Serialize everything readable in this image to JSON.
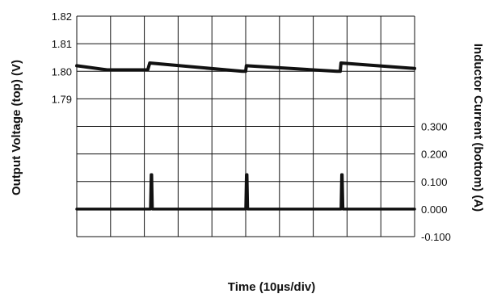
{
  "chart_data": {
    "type": "line",
    "xlabel": "Time (10µs/div)",
    "ylabel_left": "Output Voltage (top) (V)",
    "ylabel_right": "Inductor Current (bottom) (A)",
    "x_divisions": 10,
    "grid": true,
    "top_axis": {
      "label": "Output Voltage (top) (V)",
      "ticks": [
        "1.82",
        "1.81",
        "1.80",
        "1.79"
      ],
      "ylim": [
        1.79,
        1.82
      ]
    },
    "bottom_axis": {
      "label": "Inductor Current (bottom) (A)",
      "ticks": [
        "0.300",
        "0.200",
        "0.100",
        "0.000",
        "-0.100"
      ],
      "ylim": [
        -0.1,
        0.3
      ]
    },
    "series": [
      {
        "axis": "top",
        "color": "#111111",
        "x": [
          0,
          0.9,
          2.1,
          2.16,
          4.9,
          5.0,
          5.02,
          7.7,
          7.8,
          7.82,
          10
        ],
        "y": [
          1.802,
          1.8005,
          1.8005,
          1.803,
          1.8,
          1.8,
          1.802,
          1.8,
          1.8,
          1.803,
          1.801
        ]
      },
      {
        "axis": "bottom",
        "color": "#111111",
        "x": [
          0,
          2.18,
          2.2,
          2.22,
          2.24,
          5.0,
          5.02,
          5.04,
          5.06,
          7.82,
          7.84,
          7.86,
          7.88,
          10
        ],
        "y": [
          0.0,
          0.0,
          0.125,
          0.125,
          0.0,
          0.0,
          0.125,
          0.125,
          0.0,
          0.0,
          0.125,
          0.125,
          0.0,
          0.0
        ]
      }
    ]
  }
}
